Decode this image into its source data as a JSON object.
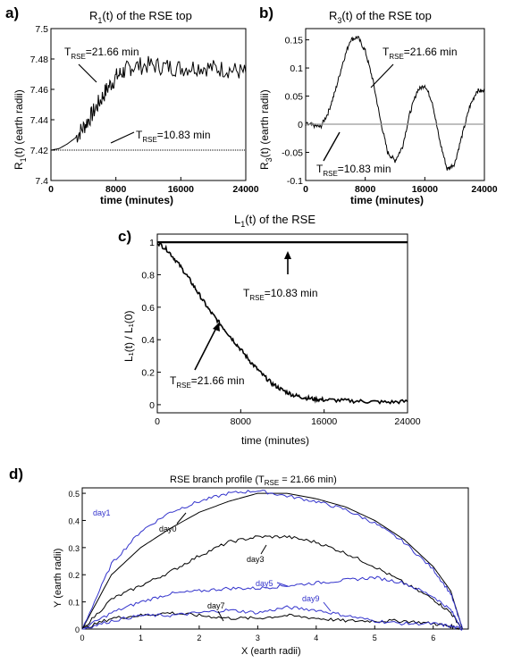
{
  "panels": {
    "a": {
      "letter": "a)",
      "title_main": "R",
      "title_sub": "1",
      "title_rest": "(t) of the RSE top",
      "ylabel_main": "R",
      "ylabel_sub": "1",
      "ylabel_rest": "(t)  (earth radii)",
      "xlabel": "time (minutes)",
      "annot_high": {
        "T": "T",
        "sub": "RSE",
        "rest": "=21.66 min"
      },
      "annot_low": {
        "T": "T",
        "sub": "RSE",
        "rest": "=10.83 min"
      }
    },
    "b": {
      "letter": "b)",
      "title_main": "R",
      "title_sub": "3",
      "title_rest": "(t) of the RSE top",
      "ylabel_main": "R",
      "ylabel_sub": "3",
      "ylabel_rest": "(t)  (earth radii)",
      "xlabel": "time (minutes)",
      "annot_high": {
        "T": "T",
        "sub": "RSE",
        "rest": "=21.66 min"
      },
      "annot_low": {
        "T": "T",
        "sub": "RSE",
        "rest": "=10.83 min"
      }
    },
    "c": {
      "letter": "c)",
      "title_main": "L",
      "title_sub": "1",
      "title_rest": "(t) of the RSE",
      "ylabel": "L₁(t) / L₁(0)",
      "xlabel": "time (minutes)",
      "annot_high": {
        "T": "T",
        "sub": "RSE",
        "rest": "=10.83 min"
      },
      "annot_low": {
        "T": "T",
        "sub": "RSE",
        "rest": "=21.66 min"
      }
    },
    "d": {
      "letter": "d)",
      "title_pre": "RSE branch profile  (T",
      "title_sub": "RSE",
      "title_post": " = 21.66 min)",
      "ylabel": "Y (earth radii)",
      "xlabel": "X (earth radii)",
      "labels": {
        "day0": "day0",
        "day1": "day1",
        "day3": "day3",
        "day5": "day5",
        "day7": "day7",
        "day9": "day9"
      }
    }
  },
  "chart_data": [
    {
      "panel": "a",
      "type": "line",
      "title": "R1(t) of the RSE top",
      "xlabel": "time (minutes)",
      "ylabel": "R1(t) (earth radii)",
      "xlim": [
        0,
        24000
      ],
      "ylim": [
        7.4,
        7.5
      ],
      "xticks": [
        0,
        8000,
        16000,
        24000
      ],
      "yticks": [
        7.4,
        7.42,
        7.44,
        7.46,
        7.48,
        7.5
      ],
      "series": [
        {
          "name": "TRSE=21.66 min",
          "x": [
            0,
            1000,
            2000,
            3000,
            4000,
            5000,
            6000,
            7000,
            8000,
            9000,
            10000,
            12000,
            14000,
            16000,
            18000,
            20000,
            22000,
            24000
          ],
          "y": [
            7.42,
            7.421,
            7.424,
            7.428,
            7.435,
            7.443,
            7.452,
            7.461,
            7.468,
            7.472,
            7.475,
            7.476,
            7.475,
            7.474,
            7.475,
            7.474,
            7.473,
            7.471
          ]
        },
        {
          "name": "TRSE=10.83 min",
          "x": [
            0,
            24000
          ],
          "y": [
            7.42,
            7.42
          ]
        }
      ]
    },
    {
      "panel": "b",
      "type": "line",
      "title": "R3(t) of the RSE top",
      "xlabel": "time (minutes)",
      "ylabel": "R3(t) (earth radii)",
      "xlim": [
        0,
        24000
      ],
      "ylim": [
        -0.1,
        0.17
      ],
      "xticks": [
        0,
        8000,
        16000,
        24000
      ],
      "yticks": [
        -0.1,
        -0.05,
        0,
        0.05,
        0.1,
        0.15
      ],
      "series": [
        {
          "name": "TRSE=21.66 min",
          "x": [
            0,
            1000,
            2000,
            3000,
            4000,
            5000,
            6000,
            7000,
            8000,
            9000,
            10000,
            11000,
            12000,
            13000,
            14000,
            15000,
            16000,
            17000,
            18000,
            19000,
            20000,
            21000,
            22000,
            23000,
            24000
          ],
          "y": [
            0,
            -0.002,
            -0.005,
            0.02,
            0.06,
            0.11,
            0.15,
            0.155,
            0.13,
            0.08,
            0.01,
            -0.05,
            -0.065,
            -0.04,
            0.02,
            0.06,
            0.07,
            0.04,
            -0.03,
            -0.08,
            -0.07,
            -0.02,
            0.03,
            0.06,
            0.058
          ]
        },
        {
          "name": "TRSE=10.83 min",
          "x": [
            0,
            24000
          ],
          "y": [
            0,
            0
          ]
        }
      ]
    },
    {
      "panel": "c",
      "type": "line",
      "title": "L1(t) of the RSE",
      "xlabel": "time (minutes)",
      "ylabel": "L1(t) / L1(0)",
      "xlim": [
        0,
        24000
      ],
      "ylim": [
        -0.05,
        1.05
      ],
      "xticks": [
        0,
        8000,
        16000,
        24000
      ],
      "yticks": [
        0,
        0.2,
        0.4,
        0.6,
        0.8,
        1
      ],
      "series": [
        {
          "name": "TRSE=10.83 min",
          "x": [
            0,
            24000
          ],
          "y": [
            1,
            1
          ]
        },
        {
          "name": "TRSE=21.66 min",
          "x": [
            0,
            1000,
            2000,
            3000,
            4000,
            5000,
            6000,
            7000,
            8000,
            9000,
            10000,
            11000,
            12000,
            13000,
            14000,
            15000,
            16000,
            18000,
            20000,
            22000,
            24000
          ],
          "y": [
            1,
            0.95,
            0.87,
            0.78,
            0.68,
            0.58,
            0.5,
            0.42,
            0.34,
            0.26,
            0.19,
            0.13,
            0.09,
            0.06,
            0.045,
            0.035,
            0.03,
            0.025,
            0.02,
            0.015,
            0.02
          ]
        }
      ]
    },
    {
      "panel": "d",
      "type": "line",
      "title": "RSE branch profile (TRSE = 21.66 min)",
      "xlabel": "X (earth radii)",
      "ylabel": "Y (earth radii)",
      "xlim": [
        0,
        6.6
      ],
      "ylim": [
        0,
        0.52
      ],
      "xticks": [
        0,
        1,
        2,
        3,
        4,
        5,
        6
      ],
      "yticks": [
        0,
        0.1,
        0.2,
        0.3,
        0.4,
        0.5
      ],
      "series": [
        {
          "name": "day0",
          "color": "#000000",
          "x": [
            0,
            0.5,
            1,
            1.5,
            2,
            2.5,
            3,
            3.5,
            4,
            4.5,
            5,
            5.5,
            6,
            6.3,
            6.5
          ],
          "y": [
            0,
            0.2,
            0.3,
            0.37,
            0.43,
            0.47,
            0.5,
            0.5,
            0.48,
            0.45,
            0.4,
            0.33,
            0.23,
            0.14,
            0
          ]
        },
        {
          "name": "day1",
          "color": "#3333cc",
          "x": [
            0,
            0.5,
            1,
            1.5,
            2,
            2.5,
            3,
            3.5,
            4,
            4.5,
            5,
            5.5,
            6,
            6.3,
            6.5
          ],
          "y": [
            0,
            0.24,
            0.36,
            0.43,
            0.47,
            0.5,
            0.51,
            0.49,
            0.47,
            0.44,
            0.39,
            0.32,
            0.22,
            0.13,
            0
          ]
        },
        {
          "name": "day3",
          "color": "#000000",
          "x": [
            0,
            0.5,
            1,
            1.5,
            2,
            2.5,
            3,
            3.5,
            4,
            4.5,
            5,
            5.5,
            6,
            6.3,
            6.5
          ],
          "y": [
            0,
            0.11,
            0.16,
            0.21,
            0.27,
            0.32,
            0.34,
            0.34,
            0.32,
            0.28,
            0.23,
            0.17,
            0.11,
            0.06,
            0
          ]
        },
        {
          "name": "day5",
          "color": "#3333cc",
          "x": [
            0,
            0.5,
            1,
            1.5,
            2,
            2.5,
            3,
            3.5,
            4,
            4.5,
            5,
            5.5,
            6,
            6.3,
            6.5
          ],
          "y": [
            0,
            0.06,
            0.1,
            0.13,
            0.14,
            0.15,
            0.15,
            0.16,
            0.17,
            0.18,
            0.19,
            0.17,
            0.12,
            0.07,
            0
          ]
        },
        {
          "name": "day7",
          "color": "#000000",
          "x": [
            0,
            0.5,
            1,
            1.5,
            2,
            2.5,
            3,
            3.5,
            4,
            4.5,
            5,
            5.5,
            6,
            6.3,
            6.5
          ],
          "y": [
            0,
            0.04,
            0.05,
            0.06,
            0.05,
            0.04,
            0.04,
            0.05,
            0.04,
            0.03,
            0.03,
            0.03,
            0.02,
            0.01,
            0
          ]
        },
        {
          "name": "day9",
          "color": "#3333cc",
          "x": [
            0,
            0.5,
            1,
            1.5,
            2,
            2.5,
            3,
            3.5,
            4,
            4.5,
            5,
            5.5,
            6,
            6.3,
            6.5
          ],
          "y": [
            0,
            0.03,
            0.05,
            0.05,
            0.06,
            0.07,
            0.06,
            0.08,
            0.07,
            0.05,
            0.03,
            0.02,
            0.02,
            0.01,
            0
          ]
        }
      ]
    }
  ]
}
